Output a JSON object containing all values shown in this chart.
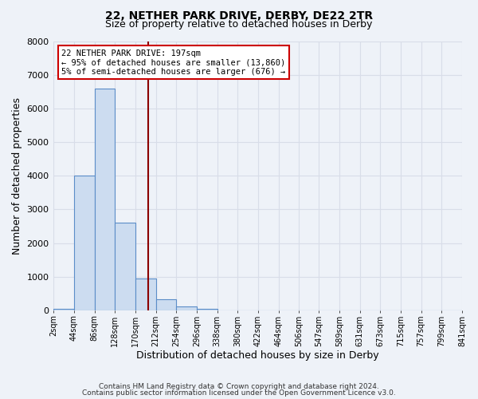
{
  "title": "22, NETHER PARK DRIVE, DERBY, DE22 2TR",
  "subtitle": "Size of property relative to detached houses in Derby",
  "xlabel": "Distribution of detached houses by size in Derby",
  "ylabel": "Number of detached properties",
  "bar_color": "#ccdcf0",
  "bar_edge_color": "#5b8dc8",
  "background_color": "#eef2f8",
  "grid_color": "#d8dde8",
  "property_line_x": 197,
  "property_line_color": "#8b0000",
  "annotation_title": "22 NETHER PARK DRIVE: 197sqm",
  "annotation_line1": "← 95% of detached houses are smaller (13,860)",
  "annotation_line2": "5% of semi-detached houses are larger (676) →",
  "annotation_box_color": "#cc0000",
  "bin_edges": [
    2,
    44,
    86,
    128,
    170,
    212,
    254,
    296,
    338,
    380,
    422,
    464,
    506,
    547,
    589,
    631,
    673,
    715,
    757,
    799,
    841
  ],
  "bin_heights": [
    50,
    4000,
    6600,
    2600,
    950,
    320,
    110,
    50,
    0,
    0,
    0,
    0,
    0,
    0,
    0,
    0,
    0,
    0,
    0,
    0
  ],
  "tick_labels": [
    "2sqm",
    "44sqm",
    "86sqm",
    "128sqm",
    "170sqm",
    "212sqm",
    "254sqm",
    "296sqm",
    "338sqm",
    "380sqm",
    "422sqm",
    "464sqm",
    "506sqm",
    "547sqm",
    "589sqm",
    "631sqm",
    "673sqm",
    "715sqm",
    "757sqm",
    "799sqm",
    "841sqm"
  ],
  "ylim": [
    0,
    8000
  ],
  "yticks": [
    0,
    1000,
    2000,
    3000,
    4000,
    5000,
    6000,
    7000,
    8000
  ],
  "footer1": "Contains HM Land Registry data © Crown copyright and database right 2024.",
  "footer2": "Contains public sector information licensed under the Open Government Licence v3.0."
}
